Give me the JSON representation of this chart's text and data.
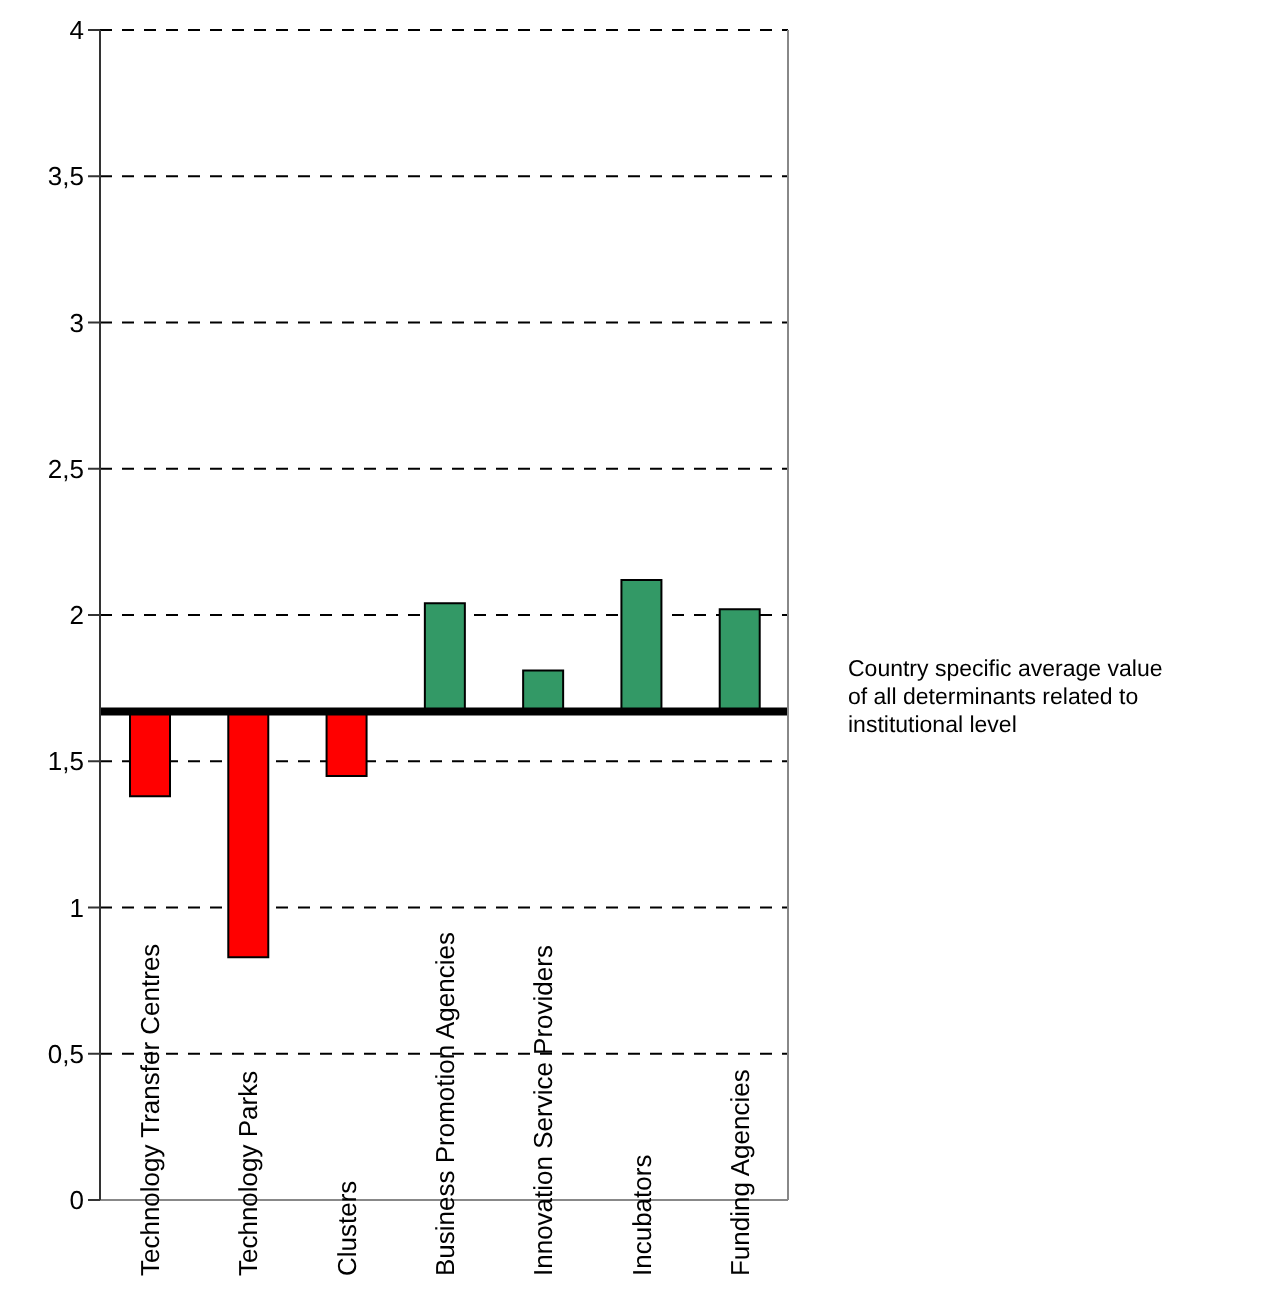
{
  "chart_data": {
    "type": "bar",
    "categories": [
      "Technology Transfer Centres",
      "Technology Parks",
      "Clusters",
      "Business Promotion Agencies",
      "Innovation Service Providers",
      "Incubators",
      "Funding Agencies"
    ],
    "base": [
      1.67,
      1.67,
      1.67,
      1.67,
      1.67,
      1.67,
      1.67
    ],
    "values": [
      -0.29,
      -0.84,
      -0.22,
      0.37,
      0.14,
      0.45,
      0.35
    ],
    "colors": [
      "#ff0000",
      "#ff0000",
      "#ff0000",
      "#339966",
      "#339966",
      "#339966",
      "#339966"
    ],
    "ylim": [
      0,
      4
    ],
    "yticks": [
      0,
      {
        "value": 0.5,
        "label": "0,5"
      },
      1,
      {
        "value": 1.5,
        "label": "1,5"
      },
      2,
      {
        "value": 2.5,
        "label": "2,5"
      },
      3,
      {
        "value": 3.5,
        "label": "3,5"
      },
      4
    ],
    "grid": "y",
    "ref_lines": [
      {
        "axis": "y",
        "value": 1.67,
        "label": "Country specific average value of all determinants related to institutional level",
        "color": "#000000"
      }
    ]
  }
}
